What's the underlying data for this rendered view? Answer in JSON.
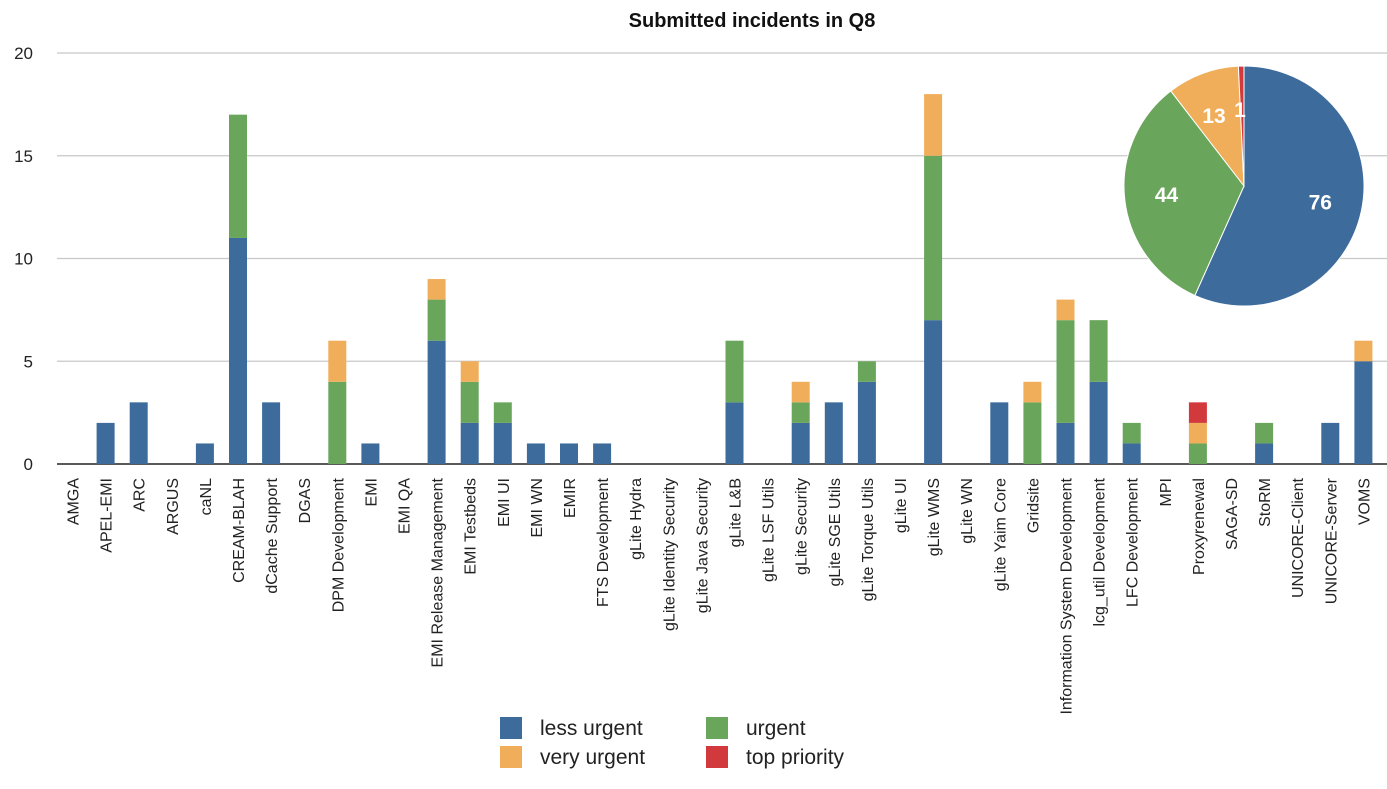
{
  "chart_data": [
    {
      "type": "bar",
      "stacked": true,
      "title": "Submitted incidents in Q8",
      "xlabel": "",
      "ylabel": "",
      "ylim": [
        0,
        20
      ],
      "yticks": [
        0,
        5,
        10,
        15,
        20
      ],
      "grid": true,
      "legend_position": "bottom",
      "categories": [
        "AMGA",
        "APEL-EMI",
        "ARC",
        "ARGUS",
        "caNL",
        "CREAM-BLAH",
        "dCache Support",
        "DGAS",
        "DPM Development",
        "EMI",
        "EMI QA",
        "EMI Release Management",
        "EMI Testbeds",
        "EMI UI",
        "EMI WN",
        "EMIR",
        "FTS Development",
        "gLite Hydra",
        "gLite Identity Security",
        "gLite Java Security",
        "gLite L&B",
        "gLite LSF Utils",
        "gLite Security",
        "gLite SGE Utils",
        "gLite Torque Utils",
        "gLite UI",
        "gLite WMS",
        "gLite WN",
        "gLite Yaim Core",
        "Gridsite",
        "Information System Development",
        "lcg_util Development",
        "LFC Development",
        "MPI",
        "Proxyrenewal",
        "SAGA-SD",
        "StoRM",
        "UNICORE-Client",
        "UNICORE-Server",
        "VOMS"
      ],
      "series": [
        {
          "name": "less urgent",
          "color": "#3d6b9c",
          "values": [
            0,
            2,
            3,
            0,
            1,
            11,
            3,
            0,
            0,
            1,
            0,
            6,
            2,
            2,
            1,
            1,
            1,
            0,
            0,
            0,
            3,
            0,
            2,
            3,
            4,
            0,
            7,
            0,
            3,
            0,
            2,
            4,
            1,
            0,
            0,
            0,
            1,
            0,
            2,
            5
          ]
        },
        {
          "name": "urgent",
          "color": "#6aa55c",
          "values": [
            0,
            0,
            0,
            0,
            0,
            6,
            0,
            0,
            4,
            0,
            0,
            2,
            2,
            1,
            0,
            0,
            0,
            0,
            0,
            0,
            3,
            0,
            1,
            0,
            1,
            0,
            8,
            0,
            0,
            3,
            5,
            3,
            1,
            0,
            1,
            0,
            1,
            0,
            0,
            0
          ]
        },
        {
          "name": "very urgent",
          "color": "#f0ae5a",
          "values": [
            0,
            0,
            0,
            0,
            0,
            0,
            0,
            0,
            2,
            0,
            0,
            1,
            1,
            0,
            0,
            0,
            0,
            0,
            0,
            0,
            0,
            0,
            1,
            0,
            0,
            0,
            3,
            0,
            0,
            1,
            1,
            0,
            0,
            0,
            1,
            0,
            0,
            0,
            0,
            1
          ]
        },
        {
          "name": "top priority",
          "color": "#d2393d",
          "values": [
            0,
            0,
            0,
            0,
            0,
            0,
            0,
            0,
            0,
            0,
            0,
            0,
            0,
            0,
            0,
            0,
            0,
            0,
            0,
            0,
            0,
            0,
            0,
            0,
            0,
            0,
            0,
            0,
            0,
            0,
            0,
            0,
            0,
            0,
            1,
            0,
            0,
            0,
            0,
            0
          ]
        }
      ]
    },
    {
      "type": "pie",
      "slices": [
        {
          "name": "less urgent",
          "value": 76,
          "color": "#3d6b9c"
        },
        {
          "name": "urgent",
          "value": 44,
          "color": "#6aa55c"
        },
        {
          "name": "very urgent",
          "value": 13,
          "color": "#f0ae5a"
        },
        {
          "name": "top priority",
          "value": 1,
          "color": "#d2393d"
        }
      ]
    }
  ]
}
